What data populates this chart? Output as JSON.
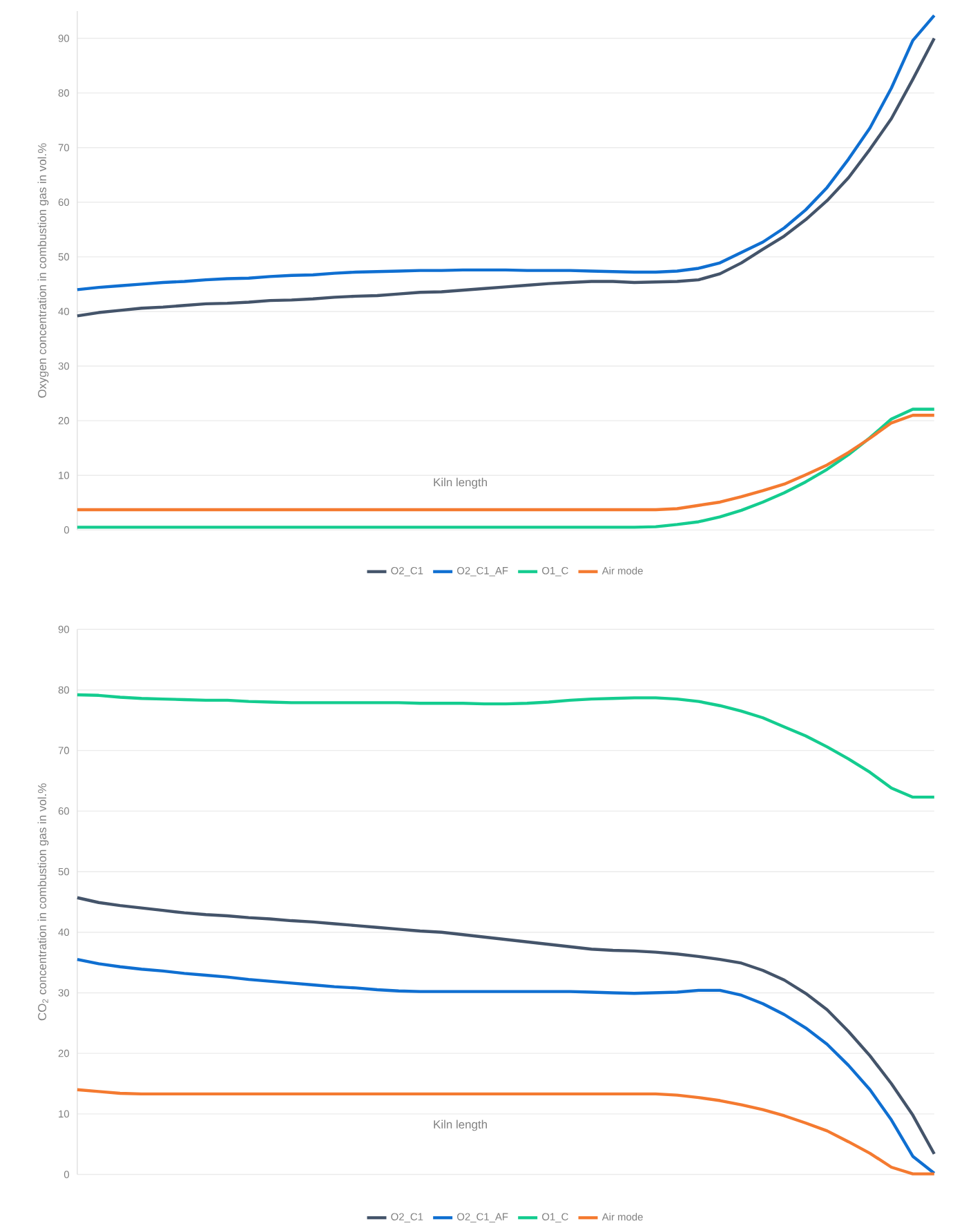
{
  "chart_data": [
    {
      "type": "line",
      "ylabel": "Oxygen concentration in combustion gas in vol.%",
      "xlabel": "Kiln length",
      "categories": [
        null,
        null,
        null,
        null,
        null,
        null,
        null,
        null,
        null,
        null,
        null,
        null,
        null,
        null,
        null,
        null,
        null,
        null,
        null,
        null,
        null,
        null,
        null,
        null,
        null,
        null,
        null,
        null,
        null,
        null,
        null,
        null,
        null,
        null,
        null,
        null,
        null,
        null,
        null,
        null,
        null
      ],
      "ylim": [
        0,
        95
      ],
      "yticks": [
        0,
        10,
        20,
        30,
        40,
        50,
        60,
        70,
        80,
        90
      ],
      "grid": "y",
      "legend": "bottom",
      "line_style": "solid",
      "marker": "none",
      "series": [
        {
          "name": "O2_C1",
          "color": "#44546a",
          "values": [
            39.2,
            39.8,
            40.2,
            40.6,
            40.8,
            41.1,
            41.4,
            41.5,
            41.7,
            42,
            42.1,
            42.3,
            42.6,
            42.8,
            42.9,
            43.2,
            43.5,
            43.6,
            43.9,
            44.2,
            44.5,
            44.8,
            45.1,
            45.3,
            45.5,
            45.5,
            45.3,
            45.4,
            45.5,
            45.8,
            46.9,
            48.9,
            51.4,
            53.8,
            56.8,
            60.3,
            64.5,
            69.7,
            75.3,
            82.5,
            90
          ]
        },
        {
          "name": "O2_C1_AF",
          "color": "#0f6fd1",
          "values": [
            44,
            44.4,
            44.7,
            45,
            45.3,
            45.5,
            45.8,
            46,
            46.1,
            46.4,
            46.6,
            46.7,
            47,
            47.2,
            47.3,
            47.4,
            47.5,
            47.5,
            47.6,
            47.6,
            47.6,
            47.5,
            47.5,
            47.5,
            47.4,
            47.3,
            47.2,
            47.2,
            47.4,
            47.9,
            48.9,
            50.8,
            52.7,
            55.3,
            58.6,
            62.7,
            67.9,
            73.6,
            80.9,
            89.6,
            94.2
          ]
        },
        {
          "name": "O1_C",
          "color": "#14cc8f",
          "values": [
            0.5,
            0.5,
            0.5,
            0.5,
            0.5,
            0.5,
            0.5,
            0.5,
            0.5,
            0.5,
            0.5,
            0.5,
            0.5,
            0.5,
            0.5,
            0.5,
            0.5,
            0.5,
            0.5,
            0.5,
            0.5,
            0.5,
            0.5,
            0.5,
            0.5,
            0.5,
            0.5,
            0.6,
            1.0,
            1.5,
            2.4,
            3.6,
            5.1,
            6.8,
            8.8,
            11.1,
            13.8,
            16.9,
            20.3,
            22.1,
            22.1
          ]
        },
        {
          "name": "Air mode",
          "color": "#f47a30",
          "values": [
            3.7,
            3.7,
            3.7,
            3.7,
            3.7,
            3.7,
            3.7,
            3.7,
            3.7,
            3.7,
            3.7,
            3.7,
            3.7,
            3.7,
            3.7,
            3.7,
            3.7,
            3.7,
            3.7,
            3.7,
            3.7,
            3.7,
            3.7,
            3.7,
            3.7,
            3.7,
            3.7,
            3.7,
            3.9,
            4.5,
            5.1,
            6.1,
            7.2,
            8.4,
            10.1,
            11.9,
            14.2,
            16.8,
            19.6,
            21,
            21
          ]
        }
      ]
    },
    {
      "type": "line",
      "ylabel": "CO$_{2}$ concentration in combustion gas in vol.%",
      "xlabel": "Kiln length",
      "categories": [
        null,
        null,
        null,
        null,
        null,
        null,
        null,
        null,
        null,
        null,
        null,
        null,
        null,
        null,
        null,
        null,
        null,
        null,
        null,
        null,
        null,
        null,
        null,
        null,
        null,
        null,
        null,
        null,
        null,
        null,
        null,
        null,
        null,
        null,
        null,
        null,
        null,
        null,
        null,
        null,
        null
      ],
      "ylim": [
        0,
        90
      ],
      "yticks": [
        0,
        10,
        20,
        30,
        40,
        50,
        60,
        70,
        80,
        90
      ],
      "grid": "y",
      "legend": "bottom",
      "line_style": "solid",
      "marker": "none",
      "series": [
        {
          "name": "O2_C1",
          "color": "#44546a",
          "values": [
            45.7,
            44.9,
            44.4,
            44,
            43.6,
            43.2,
            42.9,
            42.7,
            42.4,
            42.2,
            41.9,
            41.7,
            41.4,
            41.1,
            40.8,
            40.5,
            40.2,
            40,
            39.6,
            39.2,
            38.8,
            38.4,
            38,
            37.6,
            37.2,
            37,
            36.9,
            36.7,
            36.4,
            36,
            35.5,
            34.9,
            33.7,
            32.1,
            29.9,
            27.2,
            23.6,
            19.6,
            15,
            9.8,
            3.4
          ]
        },
        {
          "name": "O2_C1_AF",
          "color": "#0f6fd1",
          "values": [
            35.5,
            34.8,
            34.3,
            33.9,
            33.6,
            33.2,
            32.9,
            32.6,
            32.2,
            31.9,
            31.6,
            31.3,
            31,
            30.8,
            30.5,
            30.3,
            30.2,
            30.2,
            30.2,
            30.2,
            30.2,
            30.2,
            30.2,
            30.2,
            30.1,
            30,
            29.9,
            30,
            30.1,
            30.4,
            30.4,
            29.6,
            28.2,
            26.4,
            24.2,
            21.5,
            18,
            14,
            9,
            3,
            0.2
          ]
        },
        {
          "name": "O1_C",
          "color": "#14cc8f",
          "values": [
            79.2,
            79.1,
            78.8,
            78.6,
            78.5,
            78.4,
            78.3,
            78.3,
            78.1,
            78,
            77.9,
            77.9,
            77.9,
            77.9,
            77.9,
            77.9,
            77.8,
            77.8,
            77.8,
            77.7,
            77.7,
            77.8,
            78,
            78.3,
            78.5,
            78.6,
            78.7,
            78.7,
            78.5,
            78.1,
            77.4,
            76.5,
            75.4,
            73.9,
            72.4,
            70.6,
            68.6,
            66.4,
            63.8,
            62.3,
            62.3
          ]
        },
        {
          "name": "Air mode",
          "color": "#f47a30",
          "values": [
            14,
            13.7,
            13.4,
            13.3,
            13.3,
            13.3,
            13.3,
            13.3,
            13.3,
            13.3,
            13.3,
            13.3,
            13.3,
            13.3,
            13.3,
            13.3,
            13.3,
            13.3,
            13.3,
            13.3,
            13.3,
            13.3,
            13.3,
            13.3,
            13.3,
            13.3,
            13.3,
            13.3,
            13.1,
            12.7,
            12.2,
            11.5,
            10.7,
            9.7,
            8.5,
            7.2,
            5.4,
            3.5,
            1.2,
            0.1,
            0.1
          ]
        }
      ]
    }
  ]
}
